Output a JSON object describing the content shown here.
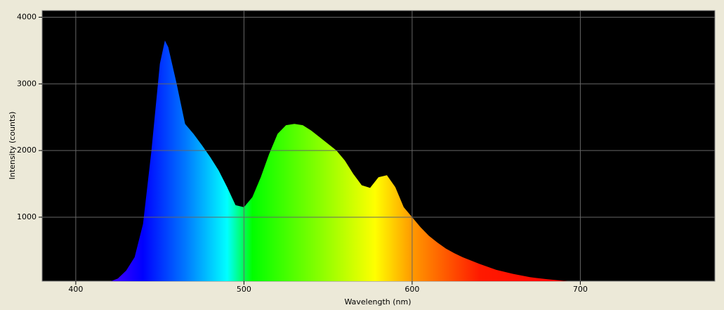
{
  "chart_data": {
    "type": "area",
    "xlabel": "Wavelength (nm)",
    "ylabel": "Intensity (counts)",
    "x": [
      415,
      420,
      425,
      430,
      435,
      440,
      445,
      450,
      453,
      455,
      460,
      465,
      470,
      475,
      480,
      485,
      490,
      495,
      500,
      505,
      510,
      515,
      520,
      525,
      530,
      535,
      540,
      545,
      550,
      555,
      560,
      565,
      570,
      575,
      580,
      585,
      590,
      595,
      600,
      605,
      610,
      615,
      620,
      625,
      630,
      640,
      650,
      660,
      670,
      680,
      690,
      700,
      710,
      720
    ],
    "values": [
      10,
      30,
      80,
      200,
      400,
      900,
      2000,
      3300,
      3650,
      3550,
      3000,
      2400,
      2250,
      2080,
      1900,
      1700,
      1450,
      1180,
      1150,
      1300,
      1600,
      1950,
      2250,
      2380,
      2400,
      2380,
      2300,
      2200,
      2100,
      2000,
      1850,
      1650,
      1480,
      1440,
      1600,
      1630,
      1450,
      1150,
      1000,
      850,
      720,
      620,
      530,
      460,
      400,
      300,
      210,
      150,
      100,
      70,
      45,
      25,
      10,
      5
    ],
    "xlim": [
      380,
      780
    ],
    "ylim": [
      40,
      4100
    ],
    "xticks": [
      400,
      500,
      600,
      700
    ],
    "yticks": [
      1000,
      2000,
      3000,
      4000
    ],
    "grid": true
  }
}
